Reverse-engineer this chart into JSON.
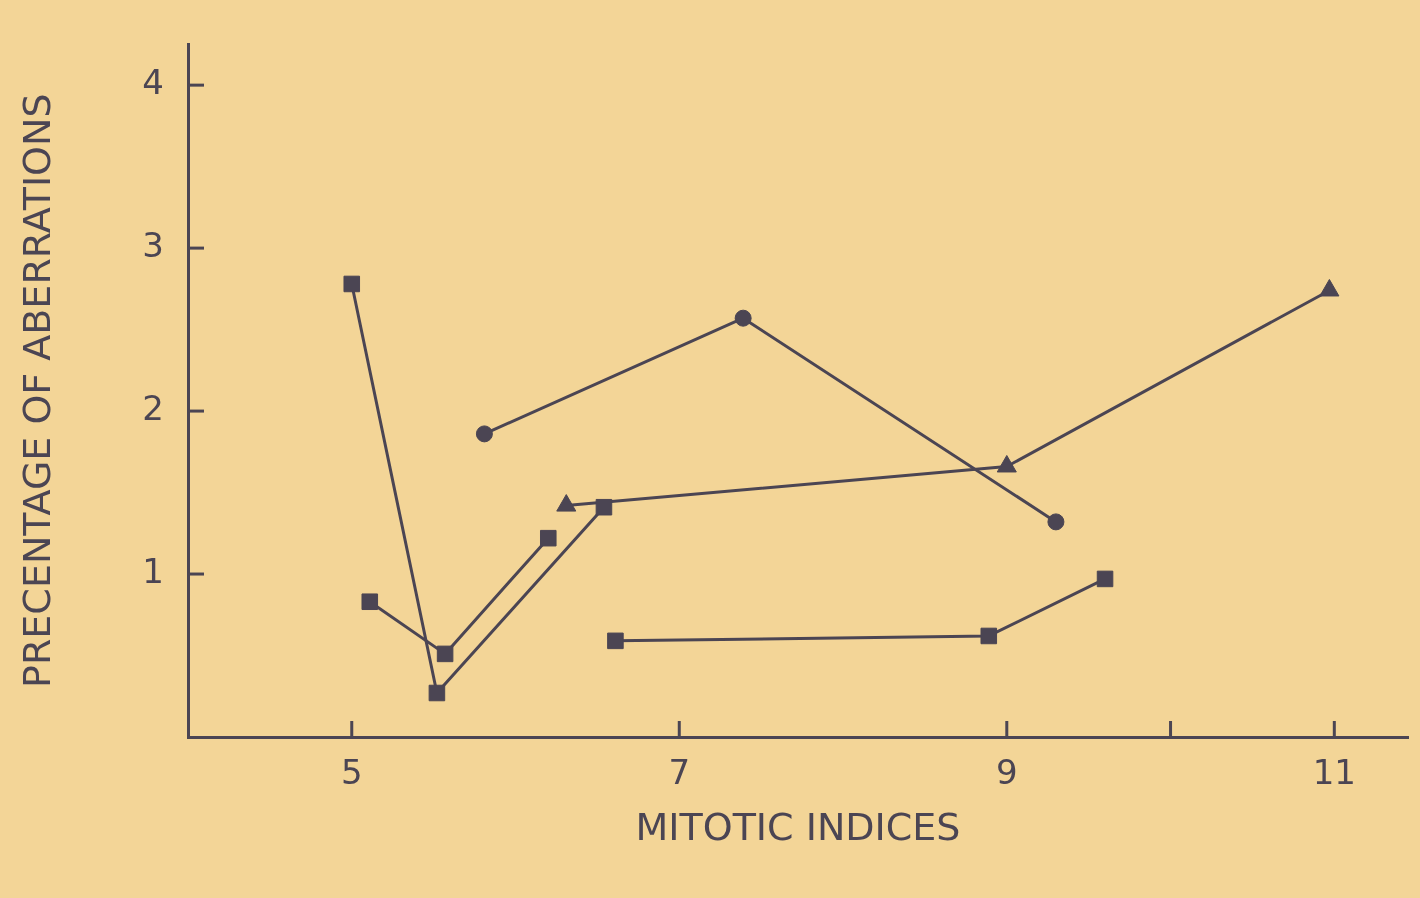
{
  "chart_data": {
    "type": "line",
    "xlabel": "MITOTIC INDICES",
    "ylabel": "PRECENTAGE OF ABERRATIONS",
    "xlim": [
      4,
      11.45
    ],
    "xticks": [
      5,
      7,
      9,
      {
        "value": 10,
        "label": null
      },
      11
    ],
    "ylim": [
      0,
      4.25
    ],
    "yticks": [
      1,
      2,
      3,
      4
    ],
    "line_style": "solid",
    "series": [
      {
        "color": "#4b4553",
        "marker": "square",
        "x": [
          5.0,
          5.52,
          6.54
        ],
        "values": [
          2.78,
          0.27,
          1.41
        ]
      },
      {
        "color": "#4b4553",
        "marker": "square",
        "x": [
          5.11,
          5.57,
          6.2
        ],
        "values": [
          0.83,
          0.51,
          1.22
        ]
      },
      {
        "color": "#4b4553",
        "marker": "circle",
        "x": [
          5.81,
          7.39,
          9.3
        ],
        "values": [
          1.86,
          2.57,
          1.32
        ]
      },
      {
        "color": "#4b4553",
        "marker": "triangle",
        "x": [
          6.31,
          9.0,
          10.97
        ],
        "values": [
          1.42,
          1.66,
          2.74
        ]
      },
      {
        "color": "#4b4553",
        "marker": "square",
        "x": [
          6.61,
          8.89,
          9.6
        ],
        "values": [
          0.59,
          0.62,
          0.97
        ]
      }
    ]
  }
}
